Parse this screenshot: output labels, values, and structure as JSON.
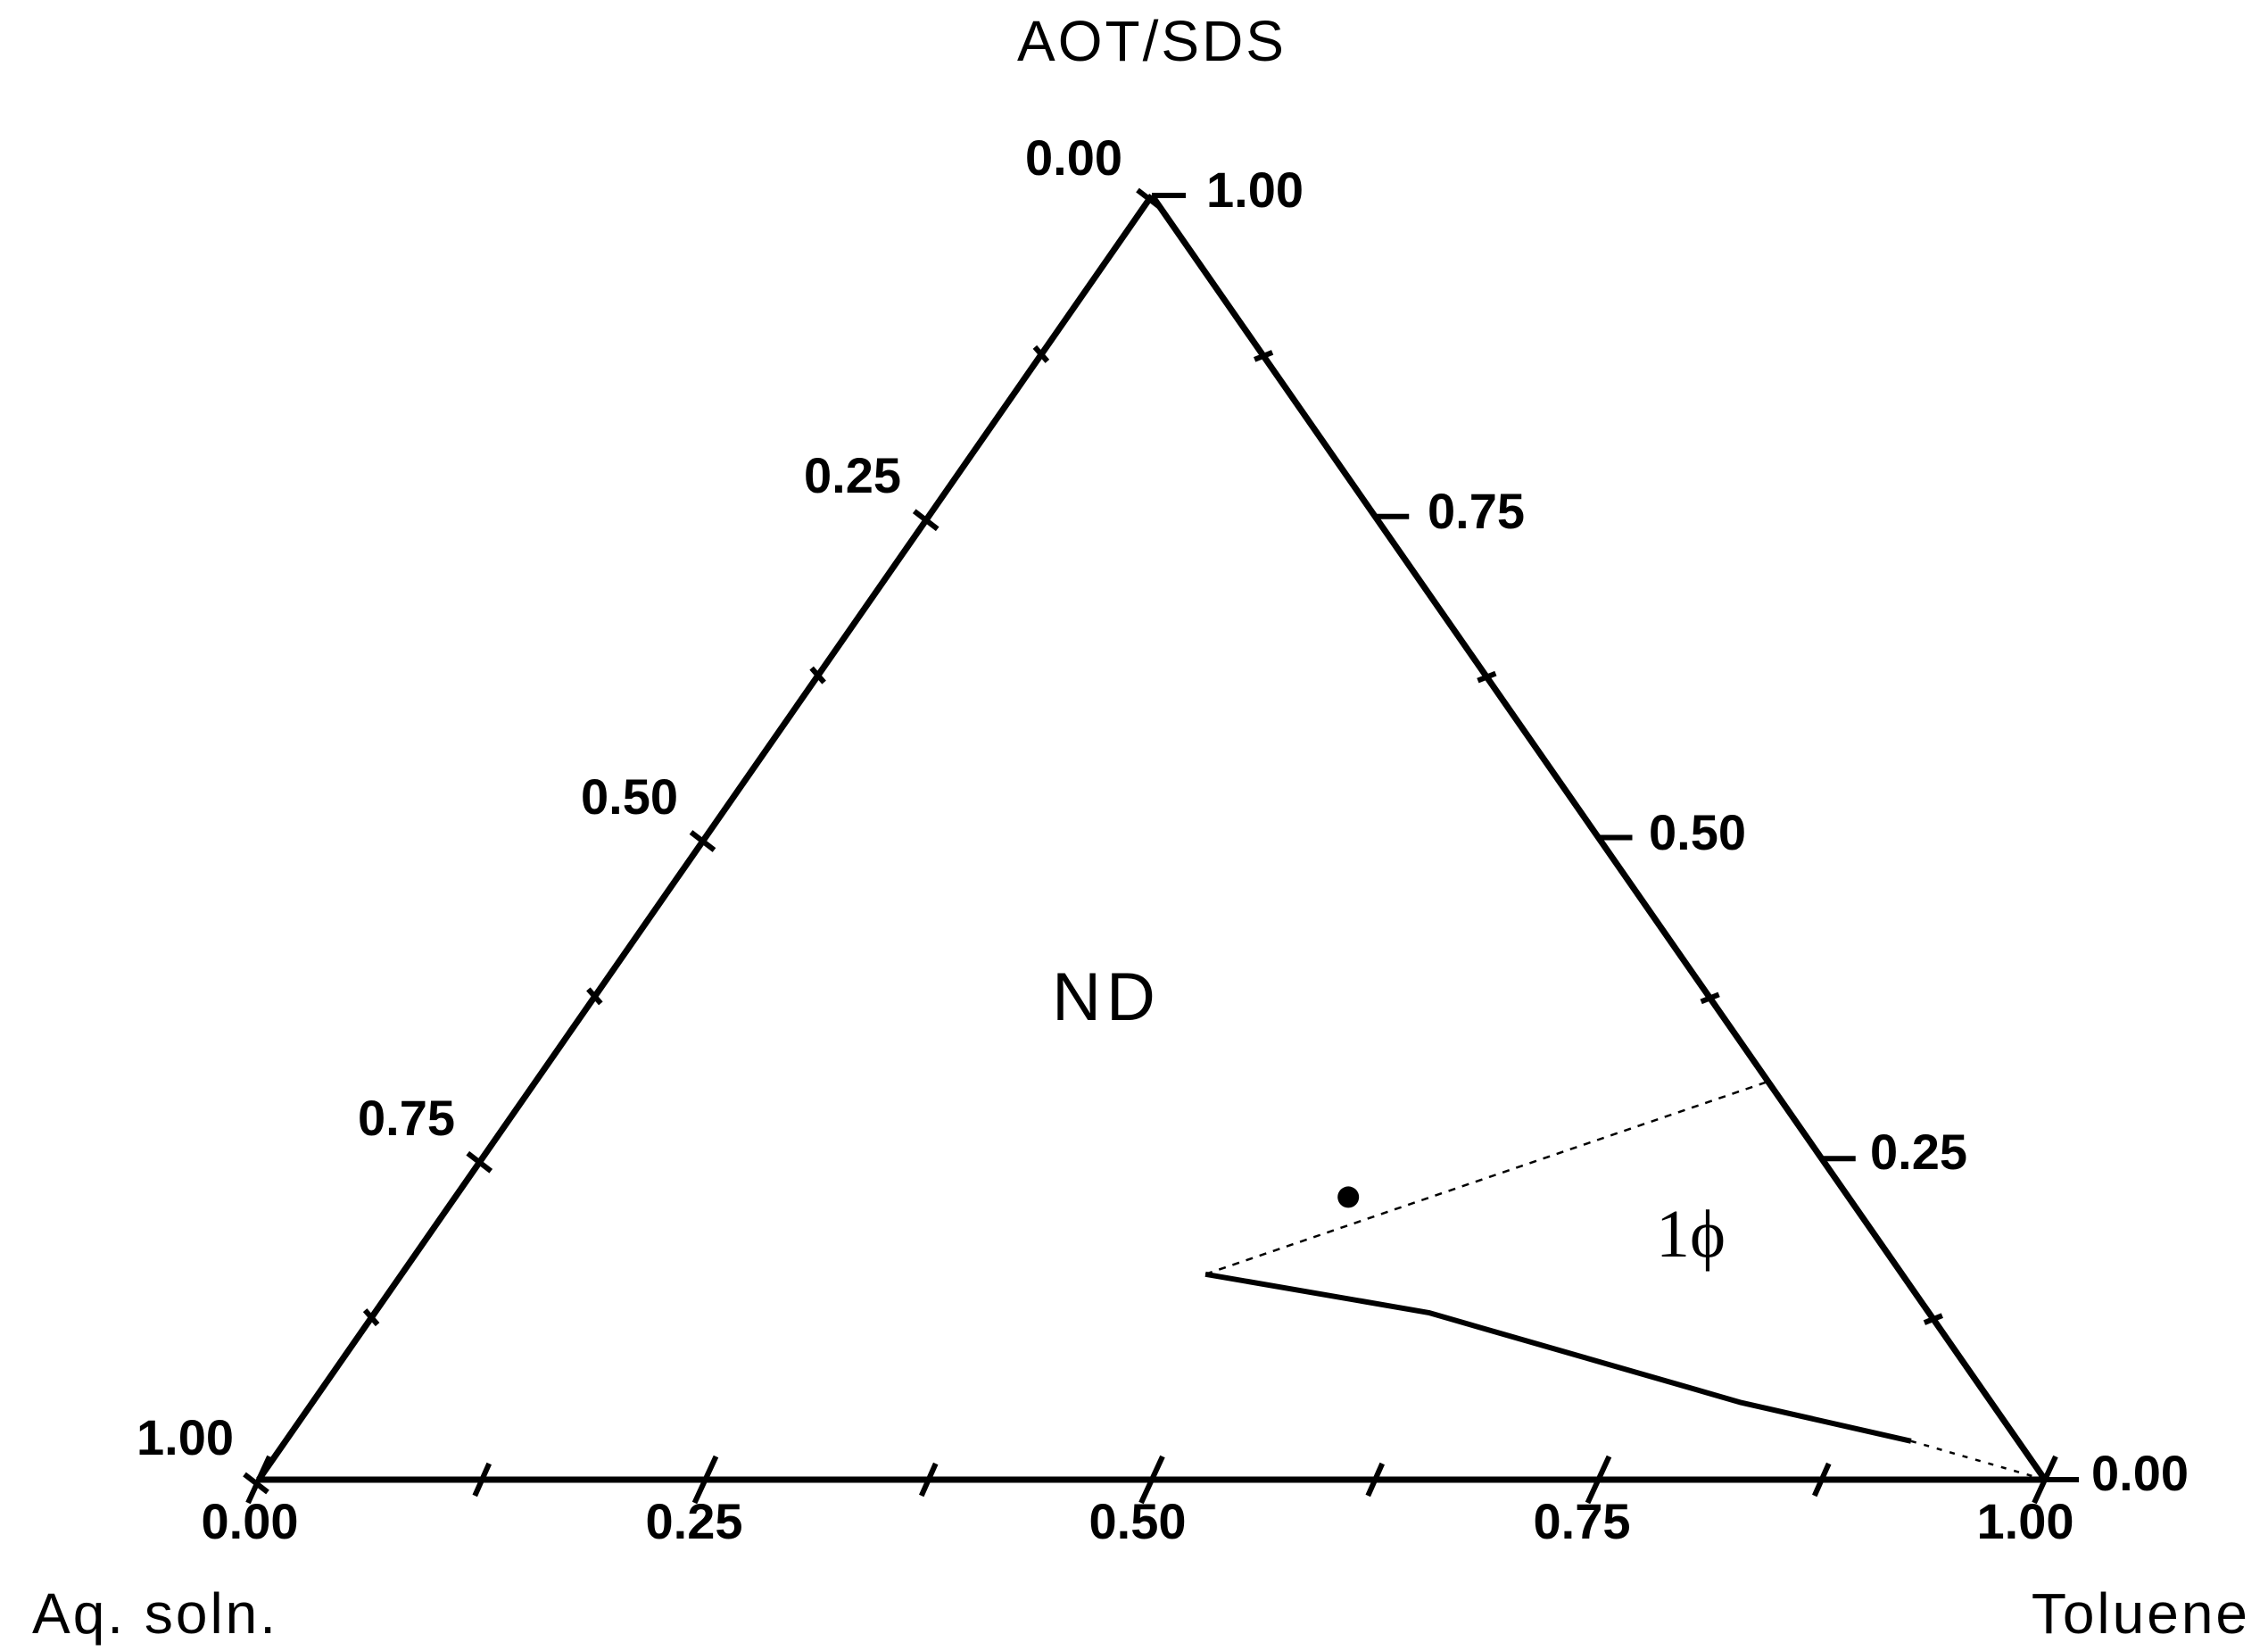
{
  "chart_data": {
    "type": "ternary",
    "vertices": {
      "top": "AOT/SDS",
      "left": "Aq. soln.",
      "right": "Toluene"
    },
    "bottom_axis": {
      "ticks": [
        "0.00",
        "0.25",
        "0.50",
        "0.75",
        "1.00"
      ]
    },
    "left_axis": {
      "ticks": [
        "0.00",
        "0.25",
        "0.50",
        "0.75",
        "1.00"
      ]
    },
    "right_axis": {
      "ticks": [
        "1.00",
        "0.75",
        "0.50",
        "0.25",
        "0.00"
      ]
    },
    "region_labels": [
      {
        "text": "ND"
      },
      {
        "text": "1ϕ"
      }
    ],
    "phase_boundary_solid": [
      {
        "aq": 0.39,
        "toluene": 0.45,
        "surfactant": 0.16
      },
      {
        "aq": 0.28,
        "toluene": 0.59,
        "surfactant": 0.13
      },
      {
        "aq": 0.14,
        "toluene": 0.8,
        "surfactant": 0.06
      },
      {
        "aq": 0.06,
        "toluene": 0.91,
        "surfactant": 0.03
      }
    ],
    "phase_boundary_dashed": [
      [
        {
          "aq": 0.39,
          "toluene": 0.45,
          "surfactant": 0.16
        },
        {
          "aq": 0.0,
          "toluene": 0.69,
          "surfactant": 0.31
        }
      ],
      [
        {
          "aq": 0.06,
          "toluene": 0.91,
          "surfactant": 0.03
        },
        {
          "aq": 0.0,
          "toluene": 1.0,
          "surfactant": 0.0
        }
      ]
    ],
    "marked_point": {
      "aq": 0.28,
      "toluene": 0.5,
      "surfactant": 0.22
    }
  }
}
